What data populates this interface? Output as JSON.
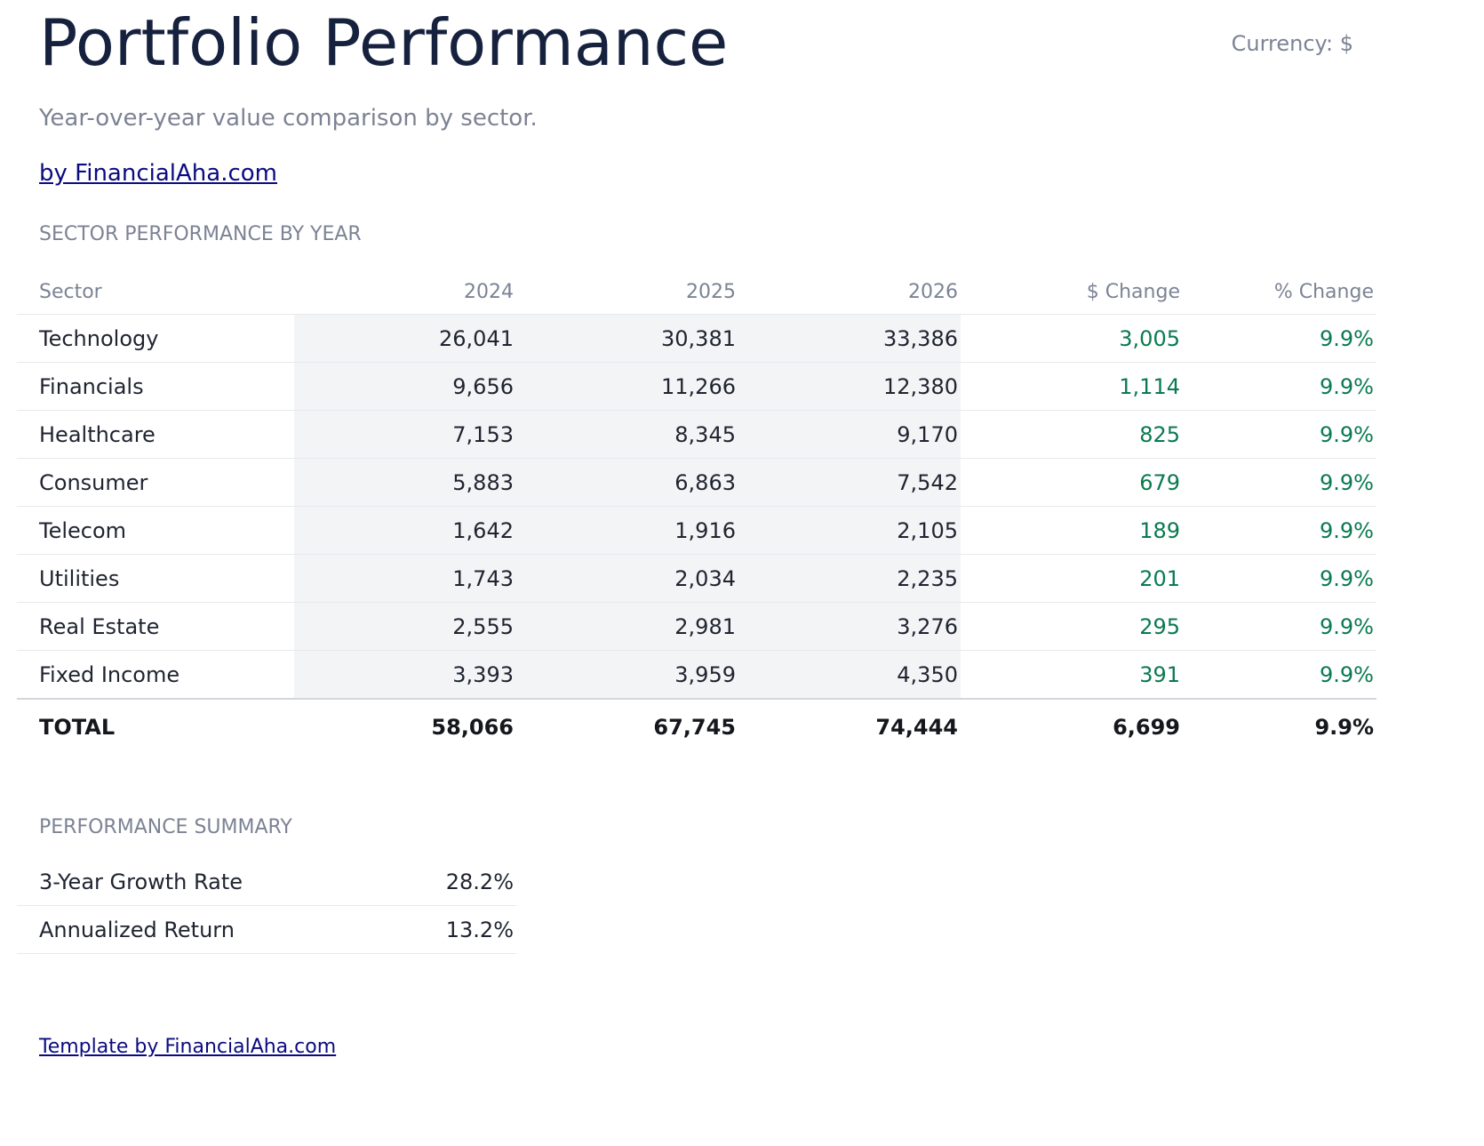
{
  "header": {
    "title": "Portfolio Performance",
    "currency": "Currency: $",
    "subtitle": "Year-over-year value comparison by sector.",
    "link": "by FinancialAha.com"
  },
  "table": {
    "caption": "SECTOR PERFORMANCE BY YEAR",
    "columns": [
      "Sector",
      "2024",
      "2025",
      "2026",
      "$ Change",
      "% Change"
    ],
    "rows": [
      [
        "Technology",
        "26,041",
        "30,381",
        "33,386",
        "3,005",
        "9.9%"
      ],
      [
        "Financials",
        "9,656",
        "11,266",
        "12,380",
        "1,114",
        "9.9%"
      ],
      [
        "Healthcare",
        "7,153",
        "8,345",
        "9,170",
        "825",
        "9.9%"
      ],
      [
        "Consumer",
        "5,883",
        "6,863",
        "7,542",
        "679",
        "9.9%"
      ],
      [
        "Telecom",
        "1,642",
        "1,916",
        "2,105",
        "189",
        "9.9%"
      ],
      [
        "Utilities",
        "1,743",
        "2,034",
        "2,235",
        "201",
        "9.9%"
      ],
      [
        "Real Estate",
        "2,555",
        "2,981",
        "3,276",
        "295",
        "9.9%"
      ],
      [
        "Fixed Income",
        "3,393",
        "3,959",
        "4,350",
        "391",
        "9.9%"
      ]
    ],
    "total": [
      "TOTAL",
      "58,066",
      "67,745",
      "74,444",
      "6,699",
      "9.9%"
    ]
  },
  "summary": {
    "caption": "PERFORMANCE SUMMARY",
    "rows": [
      [
        "3-Year Growth Rate",
        "28.2%"
      ],
      [
        "Annualized Return",
        "13.2%"
      ]
    ]
  },
  "footer": {
    "link": "Template by FinancialAha.com"
  }
}
